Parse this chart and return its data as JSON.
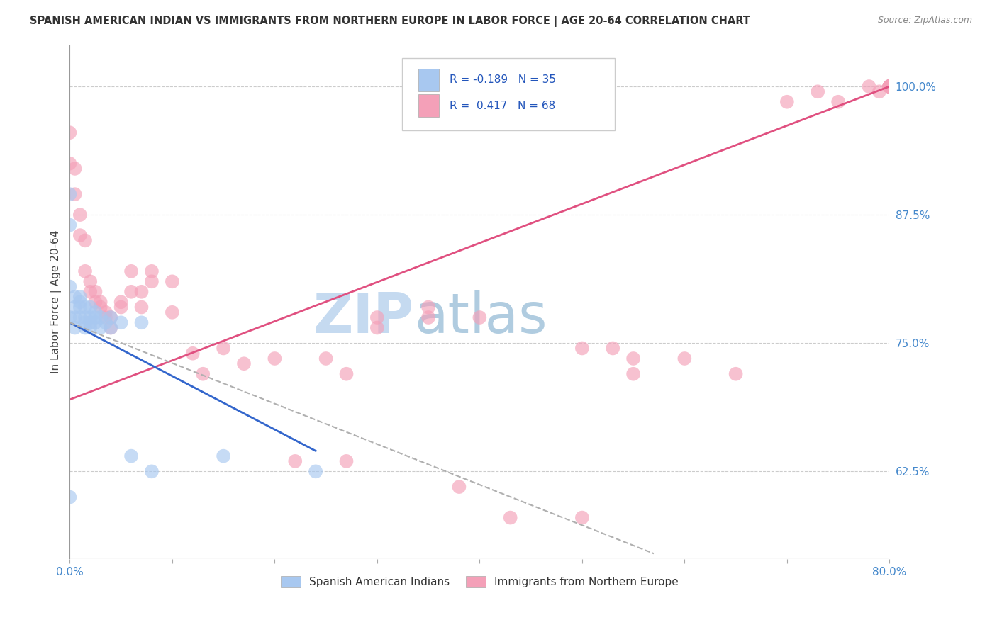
{
  "title": "SPANISH AMERICAN INDIAN VS IMMIGRANTS FROM NORTHERN EUROPE IN LABOR FORCE | AGE 20-64 CORRELATION CHART",
  "source": "Source: ZipAtlas.com",
  "ylabel": "In Labor Force | Age 20-64",
  "xlim": [
    0.0,
    0.8
  ],
  "ylim": [
    0.54,
    1.04
  ],
  "xticks": [
    0.0,
    0.1,
    0.2,
    0.3,
    0.4,
    0.5,
    0.6,
    0.7,
    0.8
  ],
  "xticklabels": [
    "0.0%",
    "",
    "",
    "",
    "",
    "",
    "",
    "",
    "80.0%"
  ],
  "yticks": [
    0.625,
    0.75,
    0.875,
    1.0
  ],
  "yticklabels": [
    "62.5%",
    "75.0%",
    "87.5%",
    "100.0%"
  ],
  "blue_color": "#a8c8f0",
  "pink_color": "#f4a0b8",
  "blue_line_color": "#3366cc",
  "pink_line_color": "#e05080",
  "dashed_line_color": "#b0b0b0",
  "watermark_zip": "ZIP",
  "watermark_atlas": "atlas",
  "watermark_color_zip": "#c8dff5",
  "watermark_color_atlas": "#b0cce8",
  "blue_scatter_x": [
    0.0,
    0.0,
    0.0,
    0.0,
    0.0,
    0.005,
    0.005,
    0.005,
    0.005,
    0.01,
    0.01,
    0.01,
    0.01,
    0.015,
    0.015,
    0.015,
    0.015,
    0.02,
    0.02,
    0.02,
    0.02,
    0.025,
    0.025,
    0.025,
    0.03,
    0.03,
    0.035,
    0.04,
    0.04,
    0.05,
    0.06,
    0.07,
    0.08,
    0.15,
    0.24
  ],
  "blue_scatter_y": [
    0.895,
    0.865,
    0.805,
    0.775,
    0.6,
    0.795,
    0.785,
    0.775,
    0.765,
    0.795,
    0.79,
    0.785,
    0.775,
    0.785,
    0.775,
    0.77,
    0.765,
    0.785,
    0.775,
    0.77,
    0.765,
    0.78,
    0.775,
    0.77,
    0.775,
    0.765,
    0.77,
    0.775,
    0.765,
    0.77,
    0.64,
    0.77,
    0.625,
    0.64,
    0.625
  ],
  "pink_scatter_x": [
    0.0,
    0.0,
    0.005,
    0.005,
    0.01,
    0.01,
    0.015,
    0.015,
    0.02,
    0.02,
    0.025,
    0.025,
    0.03,
    0.03,
    0.035,
    0.035,
    0.04,
    0.04,
    0.05,
    0.05,
    0.06,
    0.06,
    0.07,
    0.07,
    0.08,
    0.08,
    0.1,
    0.1,
    0.12,
    0.13,
    0.15,
    0.17,
    0.2,
    0.22,
    0.25,
    0.27,
    0.27,
    0.3,
    0.3,
    0.35,
    0.35,
    0.38,
    0.4,
    0.43,
    0.5,
    0.5,
    0.53,
    0.55,
    0.55,
    0.6,
    0.65,
    0.7,
    0.73,
    0.75,
    0.78,
    0.79,
    0.8,
    0.8,
    0.8,
    0.8,
    0.8,
    0.8,
    0.8,
    0.8,
    0.8,
    0.8,
    0.8,
    0.8
  ],
  "pink_scatter_y": [
    0.955,
    0.925,
    0.92,
    0.895,
    0.875,
    0.855,
    0.85,
    0.82,
    0.81,
    0.8,
    0.8,
    0.79,
    0.79,
    0.785,
    0.78,
    0.775,
    0.775,
    0.765,
    0.79,
    0.785,
    0.82,
    0.8,
    0.8,
    0.785,
    0.82,
    0.81,
    0.81,
    0.78,
    0.74,
    0.72,
    0.745,
    0.73,
    0.735,
    0.635,
    0.735,
    0.72,
    0.635,
    0.775,
    0.765,
    0.785,
    0.775,
    0.61,
    0.775,
    0.58,
    0.745,
    0.58,
    0.745,
    0.735,
    0.72,
    0.735,
    0.72,
    0.985,
    0.995,
    0.985,
    1.0,
    0.995,
    1.0,
    1.0,
    1.0,
    1.0,
    1.0,
    1.0,
    1.0,
    1.0,
    1.0,
    1.0,
    1.0,
    1.0
  ],
  "blue_trend_x": [
    0.0,
    0.24
  ],
  "blue_trend_y": [
    0.77,
    0.645
  ],
  "pink_trend_x": [
    0.0,
    0.8
  ],
  "pink_trend_y": [
    0.695,
    1.0
  ],
  "dashed_trend_x": [
    0.0,
    0.57
  ],
  "dashed_trend_y": [
    0.77,
    0.545
  ]
}
